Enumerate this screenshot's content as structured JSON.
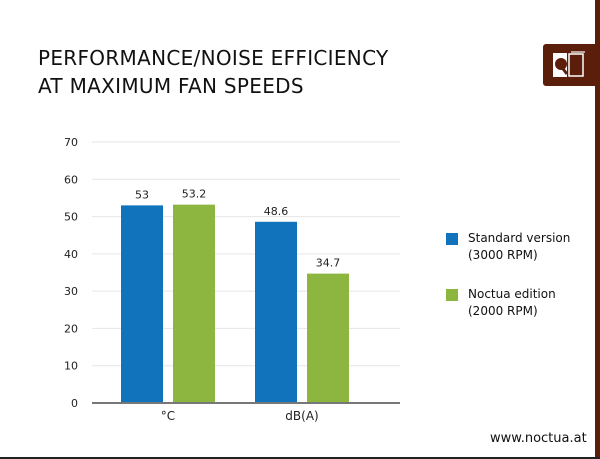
{
  "title_lines": [
    "PERFORMANCE/NOISE EFFICIENCY",
    "AT MAXIMUM FAN SPEEDS"
  ],
  "footer_url": "www.noctua.at",
  "logo": "noctua-owl-logo",
  "colors": {
    "standard": "#1173bb",
    "noctua": "#8cb640",
    "brand": "#5a1e0a"
  },
  "chart_data": {
    "type": "bar",
    "categories": [
      "°C",
      "dB(A)"
    ],
    "series": [
      {
        "name": "Standard version\n(3000 RPM)",
        "name_lines": [
          "Standard version",
          "(3000 RPM)"
        ],
        "values": [
          53,
          48.6
        ],
        "labels": [
          "53",
          "48.6"
        ]
      },
      {
        "name": "Noctua edition\n(2000 RPM)",
        "name_lines": [
          "Noctua edition",
          "(2000 RPM)"
        ],
        "values": [
          53.2,
          34.7
        ],
        "labels": [
          "53.2",
          "34.7"
        ]
      }
    ],
    "ylim": [
      0,
      70
    ],
    "yticks": [
      "0",
      "10",
      "20",
      "30",
      "40",
      "50",
      "60",
      "70"
    ],
    "grid": true,
    "legend": "right"
  }
}
